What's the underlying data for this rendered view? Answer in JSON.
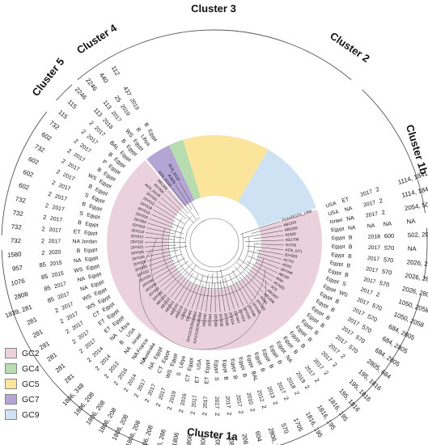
{
  "clusters": [
    {
      "label": "Cluster 3"
    },
    {
      "label": "Cluster 2"
    },
    {
      "label": "Cluster 1b"
    },
    {
      "label": "Cluster 1a"
    },
    {
      "label": "Cluster 5"
    },
    {
      "label": "Cluster 4"
    }
  ],
  "legend": [
    {
      "label": "GC2",
      "color": "#ead1dc"
    },
    {
      "label": "GC4",
      "color": "#b7dcb0"
    },
    {
      "label": "GC5",
      "color": "#fbe49c"
    },
    {
      "label": "GC7",
      "color": "#b4a5d4"
    },
    {
      "label": "GC9",
      "color": "#cfe2f3"
    }
  ],
  "columns": [
    {
      "name": "types",
      "values": [
        "1114, 1841",
        "1114, 1841",
        "2054, 502",
        "NA",
        "502, 2054",
        "NA",
        "2026, 2807",
        "2026, 2807",
        "2026, 2807",
        "1050, 2058",
        "1050, 2058",
        "684, 2805",
        "684, 2805",
        "684, 2805",
        "2805, 684",
        "195, 1816",
        "195, 1816",
        "195, 1816",
        "1816, 195",
        "1816, 195",
        "1816, 195",
        "1705",
        "570",
        "2806, 2806",
        "604",
        "208, 1806",
        "208, 1806",
        "208, 1806",
        "208, 1806",
        "208, 1806",
        "208, 1806",
        "2806, 286",
        "1806, 208",
        "1806, 208",
        "1806, 208",
        "1806, 208",
        "1806, 208",
        "1806, 208",
        "1806, 348",
        "281",
        "281",
        "281",
        "281",
        "281",
        "281",
        "1839, 281",
        "2808",
        "1076",
        "957",
        "1580",
        "732",
        "732",
        "732",
        "732",
        "602",
        "602",
        "602",
        "732",
        "602",
        "732",
        "115",
        "115",
        "2246",
        "2246",
        "440",
        "112"
      ]
    },
    {
      "name": "st",
      "values": [
        "2",
        "2",
        "2",
        "NA",
        "600",
        "570",
        "570",
        "570",
        "570",
        "2",
        "570",
        "570",
        "570",
        "570",
        "570",
        "2",
        "2",
        "2",
        "2",
        "2",
        "2",
        "2",
        "2",
        "2",
        "2",
        "2",
        "2",
        "2",
        "2",
        "2",
        "2",
        "2",
        "2",
        "2",
        "2",
        "2",
        "2",
        "2",
        "2",
        "2",
        "2",
        "2",
        "2",
        "2",
        "2",
        "85",
        "85",
        "85",
        "85",
        "2",
        "2",
        "2",
        "2",
        "2",
        "2",
        "2",
        "2",
        "2",
        "2",
        "2",
        "2",
        "2",
        "113",
        "113",
        "25",
        "437"
      ]
    },
    {
      "name": "year",
      "values": [
        "2017",
        "2017",
        "2017",
        "NA",
        "2018",
        "2017",
        "2017",
        "2017",
        "2017",
        "2017",
        "2017",
        "2017",
        "2017",
        "2017",
        "2017",
        "2017",
        "2017",
        "2017",
        "2017",
        "2019",
        "2018",
        "2017",
        "2013",
        "2012",
        "2010",
        "2017",
        "2017",
        "2017",
        "2017",
        "2017",
        "2016",
        "2019",
        "2017",
        "2017",
        "2017",
        "2014",
        "2016",
        "2012",
        "2014",
        "2014",
        "2017",
        "2017",
        "2017",
        "2017",
        "2017",
        "2017",
        "2017",
        "2015",
        "2015",
        "2020",
        "2017",
        "2017",
        "2017",
        "2017",
        "2017",
        "2017",
        "2017",
        "2017",
        "2017",
        "2017",
        "2017",
        "2017",
        "2018",
        "2017",
        "2019",
        "2019"
      ]
    },
    {
      "name": "source",
      "values": [
        "ET",
        "NA",
        "NA",
        "NA",
        "B",
        "B",
        "B",
        "B",
        "B",
        "S",
        "WS",
        "B",
        "B",
        "B",
        "B",
        "B",
        "B",
        "B",
        "B",
        "NA",
        "B",
        "B",
        "B",
        "BAL",
        "B",
        "B",
        "B",
        "S",
        "ET",
        "ET",
        "CT",
        "S",
        "WS",
        "CT",
        "NA",
        "NA",
        "NA",
        "NA",
        "B",
        "NA",
        "ET",
        "ET",
        "CT",
        "WS",
        "WS",
        "NA",
        "NA",
        "WS",
        "NA",
        "B",
        "NA",
        "ET",
        "B",
        "S",
        "B",
        "S",
        "B",
        "WS",
        "B",
        "P",
        "B",
        "BAL",
        "B",
        "WS",
        "B",
        "B"
      ]
    },
    {
      "name": "country",
      "values": [
        "USA",
        "USA",
        "Israel",
        "Egypt",
        "Egypt",
        "Egypt",
        "Egypt",
        "Egypt",
        "Egypt",
        "Egypt",
        "Egypt",
        "Egypt",
        "Egypt",
        "Egypt",
        "Egypt",
        "Egypt",
        "Egypt",
        "Egypt",
        "Egypt",
        "Egypt",
        "Egypt",
        "Egypt",
        "Egypt",
        "Egypt",
        "Egypt",
        "Egypt",
        "Egypt",
        "Egypt",
        "Egypt",
        "USA",
        "Egypt",
        "Libya",
        "Egypt",
        "Egypt",
        "Egypt",
        "Australia",
        "France",
        "Israel",
        "USA",
        "Libya",
        "Egypt",
        "Egypt",
        "Egypt",
        "Egypt",
        "Egypt",
        "Egypt",
        "Egypt",
        "Egypt",
        "Egypt",
        "Egypt",
        "Jordan",
        "Egypt",
        "Egypt",
        "Egypt",
        "Egypt",
        "Egypt",
        "Egypt",
        "Egypt",
        "Egypt",
        "Egypt",
        "Egypt",
        "Egypt",
        "Egypt",
        "Egypt",
        "Libya",
        "Egypt"
      ]
    }
  ],
  "tips": [
    "FDAARGOS_1366",
    "AB1315",
    "AB1316",
    "A1829",
    "AS1708",
    "A1702",
    "ACN_GT1",
    "20Y003",
    "A1701",
    "ACN2",
    "20Y046",
    "AB190",
    "MA6",
    "ACN2D",
    "SC6",
    "AB1307",
    "AB1308",
    "RC81",
    "20Y043",
    "20Y044",
    "20Y048",
    "20Y045",
    "20Y023",
    "20Y047",
    "20Y024",
    "20Y038",
    "20Y028",
    "20Y039",
    "20Y040",
    "AB1542",
    "11A1213CRGN008",
    "11A1213CRGN064",
    "CRA01",
    "CRA02",
    "AB1519",
    "AB1520",
    "AB1521",
    "AB1522",
    "AB1523",
    "20Y042",
    "20Y002",
    "20Y039",
    "20Y036",
    "20Y031",
    "20Y032",
    "20Y030",
    "20Y029",
    "20Y035",
    "20Y026",
    "20Y025",
    "20Y016",
    "20Y012",
    "20Y013",
    "20Y003",
    "20Y004",
    "20Y020",
    "20Y019",
    "20Y018",
    "20Y010",
    "20Y001",
    "ACN_EG36",
    "20Y005",
    "AB1305",
    "ACN_EG35",
    "A1826",
    "ACN_EG37"
  ]
}
